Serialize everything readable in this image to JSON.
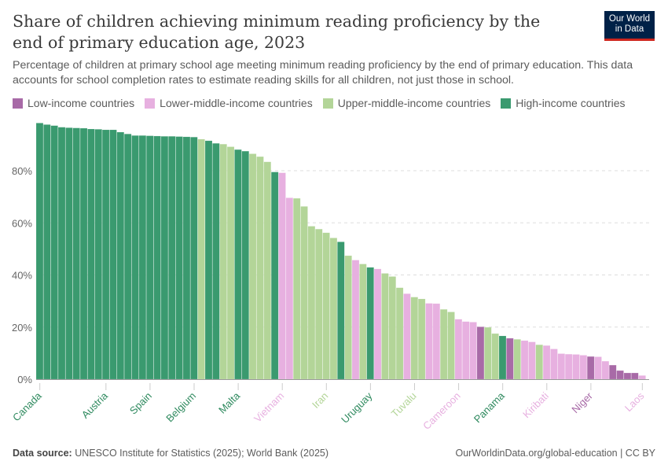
{
  "header": {
    "title": "Share of children achieving minimum reading proficiency by the end of primary education age, 2023",
    "subtitle": "Percentage of children at primary school age meeting minimum reading proficiency by the end of primary education. This data accounts for school completion rates to estimate reading skills for all children, not just those in school.",
    "logo": "Our World in Data"
  },
  "footer": {
    "source_label": "Data source:",
    "source": "UNESCO Institute for Statistics (2025); World Bank (2025)",
    "link": "OurWorldinData.org/global-education | CC BY"
  },
  "colors": {
    "H": "#3a9a6f",
    "U": "#b3d598",
    "L": "#e7b0e0",
    "Low": "#a86aa7"
  },
  "chart_data": {
    "type": "bar",
    "legend_position": "top-left",
    "legend": [
      {
        "key": "Low",
        "label": "Low-income countries"
      },
      {
        "key": "L",
        "label": "Lower-middle-income countries"
      },
      {
        "key": "U",
        "label": "Upper-middle-income countries"
      },
      {
        "key": "H",
        "label": "High-income countries"
      }
    ],
    "ylim": [
      0,
      100
    ],
    "yticks": [
      0,
      20,
      40,
      60,
      80
    ],
    "ytick_labels": [
      "0%",
      "20%",
      "40%",
      "60%",
      "80%"
    ],
    "grid": true,
    "labeled_bars": [
      {
        "index": 0,
        "name": "Canada"
      },
      {
        "index": 9,
        "name": "Austria"
      },
      {
        "index": 15,
        "name": "Spain"
      },
      {
        "index": 21,
        "name": "Belgium"
      },
      {
        "index": 27,
        "name": "Malta"
      },
      {
        "index": 33,
        "name": "Vietnam"
      },
      {
        "index": 39,
        "name": "Iran"
      },
      {
        "index": 45,
        "name": "Uruguay"
      },
      {
        "index": 51,
        "name": "Tuvalu"
      },
      {
        "index": 57,
        "name": "Cameroon"
      },
      {
        "index": 63,
        "name": "Panama"
      },
      {
        "index": 69,
        "name": "Kiribati"
      },
      {
        "index": 75,
        "name": "Niger"
      },
      {
        "index": 82,
        "name": "Laos"
      }
    ],
    "values": [
      98.3,
      97.7,
      97.3,
      96.7,
      96.5,
      96.4,
      96.3,
      96.0,
      95.9,
      95.7,
      95.7,
      94.8,
      94.1,
      93.5,
      93.5,
      93.4,
      93.3,
      93.2,
      93.2,
      93.1,
      93.0,
      92.9,
      92.1,
      91.5,
      90.5,
      90.2,
      89.2,
      88.1,
      87.5,
      86.5,
      85.4,
      83.4,
      79.5,
      79.2,
      69.6,
      69.4,
      66.3,
      58.7,
      57.6,
      56.2,
      54.2,
      52.7,
      47.4,
      45.7,
      44.2,
      42.9,
      42.3,
      40.6,
      39.4,
      35.1,
      32.8,
      31.5,
      30.8,
      29.1,
      29.0,
      26.8,
      25.8,
      23.0,
      22.1,
      21.9,
      20.1,
      19.9,
      17.5,
      16.6,
      15.7,
      15.3,
      14.8,
      14.3,
      13.2,
      12.9,
      11.6,
      9.8,
      9.6,
      9.5,
      9.2,
      8.7,
      8.6,
      6.9,
      5.4,
      3.3,
      2.4,
      2.4,
      1.4
    ],
    "groups": [
      "H",
      "H",
      "H",
      "H",
      "H",
      "H",
      "H",
      "H",
      "H",
      "H",
      "H",
      "H",
      "H",
      "H",
      "H",
      "H",
      "H",
      "H",
      "H",
      "H",
      "H",
      "H",
      "U",
      "H",
      "H",
      "U",
      "U",
      "H",
      "H",
      "U",
      "U",
      "U",
      "H",
      "L",
      "L",
      "U",
      "U",
      "U",
      "U",
      "U",
      "U",
      "H",
      "U",
      "L",
      "U",
      "H",
      "L",
      "U",
      "U",
      "U",
      "L",
      "U",
      "U",
      "L",
      "L",
      "U",
      "U",
      "L",
      "L",
      "L",
      "Low",
      "U",
      "U",
      "H",
      "Low",
      "U",
      "L",
      "L",
      "U",
      "L",
      "L",
      "L",
      "L",
      "L",
      "L",
      "Low",
      "L",
      "L",
      "Low",
      "Low",
      "Low",
      "Low",
      "L"
    ]
  }
}
